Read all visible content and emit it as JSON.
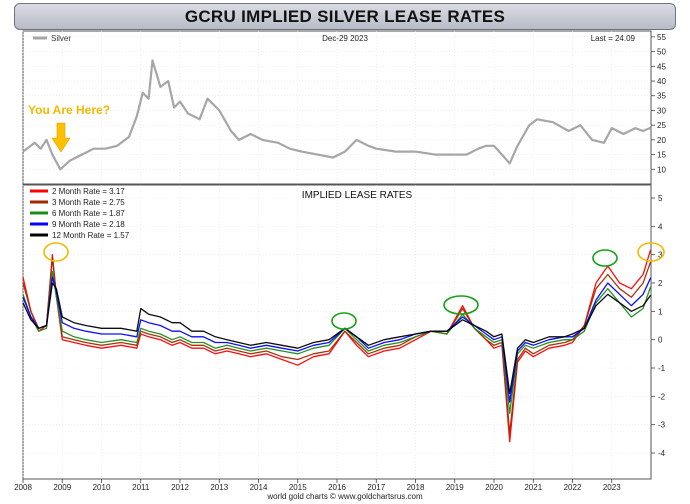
{
  "title": "GCRU IMPLIED SILVER LEASE RATES",
  "footer": "world gold charts © www.goldchartsrus.com",
  "chart_data": [
    {
      "type": "line",
      "panel": "silver-price",
      "date_label": "Dec-29  2023",
      "last_label": "Last = 24.09",
      "series": [
        {
          "name": "Silver",
          "color": "#a6a6a6",
          "x": [
            2008.0,
            2008.3,
            2008.45,
            2008.6,
            2008.75,
            2008.95,
            2009.2,
            2009.5,
            2009.8,
            2010.1,
            2010.4,
            2010.7,
            2010.9,
            2011.05,
            2011.2,
            2011.3,
            2011.5,
            2011.7,
            2011.85,
            2012.0,
            2012.2,
            2012.5,
            2012.7,
            2013.0,
            2013.3,
            2013.5,
            2013.8,
            2014.1,
            2014.5,
            2014.8,
            2015.1,
            2015.5,
            2015.9,
            2016.2,
            2016.5,
            2016.8,
            2017.0,
            2017.5,
            2018.0,
            2018.5,
            2018.9,
            2019.3,
            2019.6,
            2019.8,
            2020.0,
            2020.2,
            2020.4,
            2020.6,
            2020.9,
            2021.1,
            2021.5,
            2021.9,
            2022.2,
            2022.5,
            2022.8,
            2023.0,
            2023.3,
            2023.6,
            2023.8,
            2023.99
          ],
          "values": [
            16,
            19,
            17,
            20,
            15,
            10,
            13,
            15,
            17,
            17,
            18,
            21,
            28,
            36,
            34,
            47,
            38,
            40,
            31,
            33,
            29,
            27,
            34,
            30,
            23,
            20,
            22,
            20,
            19,
            17,
            16,
            15,
            14,
            16,
            20,
            18,
            17,
            16,
            16,
            15,
            15,
            15,
            17,
            18,
            18,
            15,
            12,
            18,
            25,
            27,
            26,
            23,
            25,
            20,
            19,
            24,
            22,
            24,
            23,
            24.09
          ]
        }
      ],
      "ylim": [
        5,
        57
      ],
      "yticks": [
        10,
        15,
        20,
        25,
        30,
        35,
        40,
        45,
        50,
        55
      ]
    },
    {
      "type": "line",
      "panel": "lease-rates",
      "title": "IMPLIED LEASE RATES",
      "xlim": [
        2008,
        2024
      ],
      "xticks": [
        "2008",
        "2009",
        "2010",
        "2011",
        "2012",
        "2013",
        "2014",
        "2015",
        "2016",
        "2017",
        "2018",
        "2019",
        "2020",
        "2021",
        "2022",
        "2023"
      ],
      "ylim": [
        -4,
        5
      ],
      "yticks": [
        5,
        4,
        3,
        2,
        1,
        0,
        -1,
        -2,
        -3,
        -4
      ],
      "annotation": "You Are Here?",
      "x": [
        2008.0,
        2008.2,
        2008.4,
        2008.6,
        2008.75,
        2008.85,
        2009.0,
        2009.3,
        2009.6,
        2010.0,
        2010.5,
        2010.9,
        2011.0,
        2011.2,
        2011.5,
        2011.8,
        2012.0,
        2012.3,
        2012.6,
        2012.9,
        2013.2,
        2013.5,
        2013.8,
        2014.2,
        2014.6,
        2015.0,
        2015.4,
        2015.8,
        2016.2,
        2016.5,
        2016.8,
        2017.2,
        2017.6,
        2018.0,
        2018.4,
        2018.8,
        2019.2,
        2019.5,
        2019.8,
        2020.0,
        2020.2,
        2020.4,
        2020.6,
        2020.8,
        2021.0,
        2021.4,
        2021.8,
        2022.0,
        2022.3,
        2022.6,
        2022.9,
        2023.2,
        2023.5,
        2023.8,
        2023.99
      ],
      "series": [
        {
          "name": "2 Month Rate  = 3.17",
          "color": "#ff0000",
          "values": [
            2.2,
            1.0,
            0.3,
            0.5,
            3.0,
            1.5,
            0.0,
            -0.1,
            -0.2,
            -0.3,
            -0.2,
            -0.3,
            0.2,
            0.1,
            0.0,
            -0.2,
            -0.1,
            -0.3,
            -0.3,
            -0.5,
            -0.4,
            -0.5,
            -0.6,
            -0.5,
            -0.7,
            -0.9,
            -0.6,
            -0.5,
            0.3,
            -0.2,
            -0.6,
            -0.4,
            -0.3,
            0.0,
            0.3,
            0.2,
            1.2,
            0.4,
            0.0,
            -0.3,
            -0.2,
            -3.6,
            -0.8,
            -0.4,
            -0.6,
            -0.3,
            -0.2,
            -0.1,
            0.5,
            2.0,
            2.6,
            2.0,
            1.8,
            2.3,
            3.17
          ]
        },
        {
          "name": "3 Month Rate  = 2.75",
          "color": "#a52a00",
          "values": [
            2.0,
            1.0,
            0.4,
            0.5,
            2.9,
            1.6,
            0.1,
            0.0,
            -0.1,
            -0.2,
            -0.1,
            -0.2,
            0.3,
            0.2,
            0.1,
            -0.1,
            0.0,
            -0.2,
            -0.2,
            -0.4,
            -0.3,
            -0.4,
            -0.5,
            -0.4,
            -0.6,
            -0.7,
            -0.5,
            -0.4,
            0.3,
            -0.1,
            -0.5,
            -0.3,
            -0.2,
            0.1,
            0.3,
            0.2,
            1.1,
            0.4,
            0.0,
            -0.2,
            -0.1,
            -3.3,
            -0.7,
            -0.3,
            -0.5,
            -0.2,
            -0.1,
            0.0,
            0.5,
            1.8,
            2.3,
            1.8,
            1.5,
            2.0,
            2.75
          ]
        },
        {
          "name": "6 Month Rate  = 1.87",
          "color": "#1a8c1a",
          "values": [
            1.6,
            0.8,
            0.3,
            0.4,
            2.4,
            1.5,
            0.3,
            0.1,
            0.0,
            -0.1,
            0.0,
            -0.1,
            0.4,
            0.3,
            0.2,
            0.0,
            0.1,
            -0.1,
            -0.1,
            -0.3,
            -0.2,
            -0.3,
            -0.4,
            -0.3,
            -0.4,
            -0.5,
            -0.3,
            -0.2,
            0.4,
            0.0,
            -0.4,
            -0.2,
            -0.1,
            0.1,
            0.3,
            0.2,
            0.9,
            0.4,
            0.1,
            -0.1,
            0.0,
            -2.6,
            -0.5,
            -0.2,
            -0.3,
            -0.1,
            0.0,
            0.0,
            0.3,
            1.3,
            1.8,
            1.3,
            0.8,
            1.1,
            1.87
          ]
        },
        {
          "name": "9 Month Rate  = 2.18",
          "color": "#0000ff",
          "values": [
            1.5,
            0.8,
            0.4,
            0.5,
            2.2,
            1.7,
            0.6,
            0.4,
            0.3,
            0.2,
            0.2,
            0.1,
            0.7,
            0.6,
            0.5,
            0.3,
            0.3,
            0.1,
            0.1,
            -0.1,
            -0.1,
            -0.2,
            -0.3,
            -0.2,
            -0.3,
            -0.4,
            -0.2,
            -0.1,
            0.4,
            0.1,
            -0.3,
            -0.1,
            0.0,
            0.2,
            0.3,
            0.3,
            0.8,
            0.5,
            0.2,
            0.0,
            0.1,
            -2.2,
            -0.4,
            -0.1,
            -0.2,
            0.0,
            0.1,
            0.1,
            0.4,
            1.4,
            2.0,
            1.6,
            1.2,
            1.6,
            2.18
          ]
        },
        {
          "name": "12 Month Rate  = 1.57",
          "color": "#000000",
          "values": [
            1.3,
            0.7,
            0.4,
            0.5,
            2.0,
            1.8,
            0.8,
            0.6,
            0.5,
            0.4,
            0.4,
            0.3,
            1.1,
            0.9,
            0.8,
            0.6,
            0.6,
            0.3,
            0.3,
            0.1,
            0.0,
            -0.1,
            -0.2,
            -0.1,
            -0.2,
            -0.3,
            -0.1,
            0.0,
            0.4,
            0.1,
            -0.2,
            0.0,
            0.1,
            0.2,
            0.3,
            0.3,
            0.7,
            0.5,
            0.3,
            0.1,
            0.2,
            -1.9,
            -0.3,
            0.0,
            -0.1,
            0.1,
            0.1,
            0.2,
            0.4,
            1.2,
            1.6,
            1.3,
            1.0,
            1.2,
            1.57
          ]
        }
      ]
    }
  ]
}
